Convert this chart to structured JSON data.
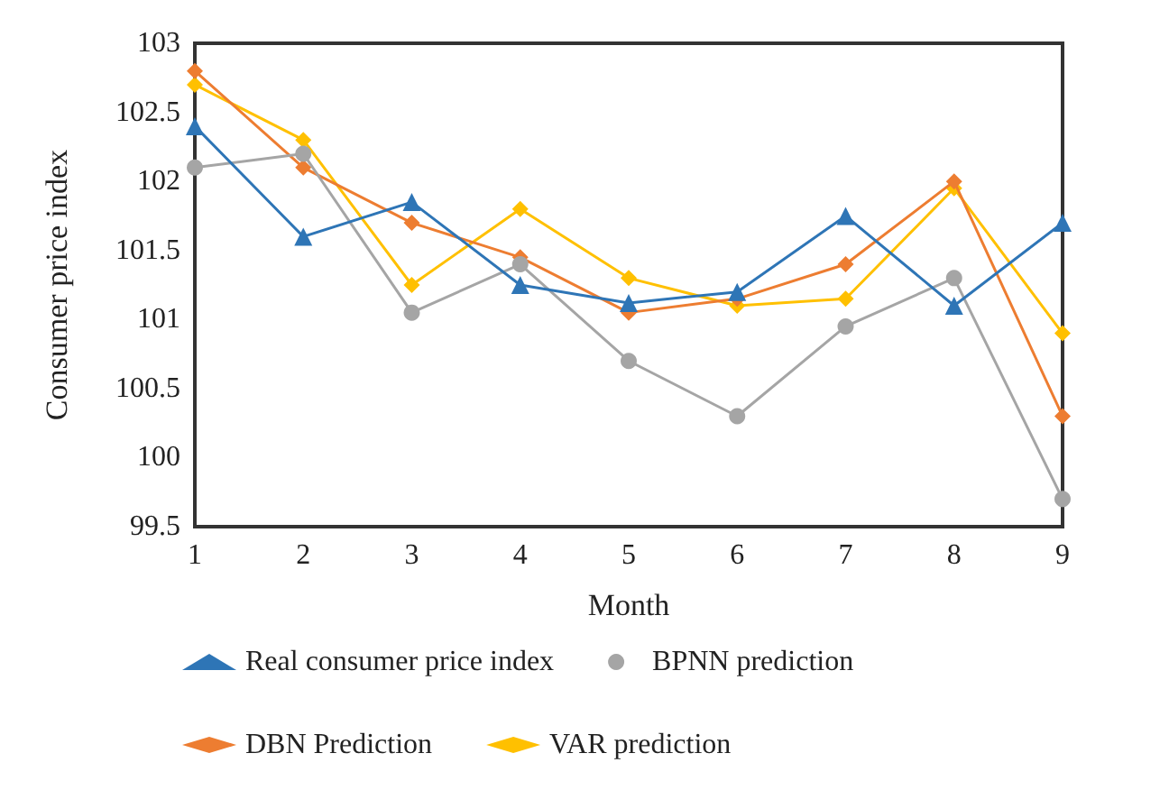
{
  "chart_data": {
    "type": "line",
    "xlabel": "Month",
    "ylabel": "Consumer price index",
    "x": [
      1,
      2,
      3,
      4,
      5,
      6,
      7,
      8,
      9
    ],
    "xlim": [
      1,
      9
    ],
    "xticks": [
      1,
      2,
      3,
      4,
      5,
      6,
      7,
      8,
      9
    ],
    "ylim": [
      99.5,
      103
    ],
    "yticks": [
      99.5,
      100,
      100.5,
      101,
      101.5,
      102,
      102.5,
      103
    ],
    "grid": false,
    "legend": "bottom",
    "series": [
      {
        "name": "Real consumer price index",
        "color": "#2e75b6",
        "marker": "triangle",
        "values": [
          102.4,
          101.6,
          101.85,
          101.25,
          101.12,
          101.2,
          101.75,
          101.1,
          101.7
        ]
      },
      {
        "name": "BPNN prediction",
        "color": "#a5a5a5",
        "marker": "circle",
        "values": [
          102.1,
          102.2,
          101.05,
          101.4,
          100.7,
          100.3,
          100.95,
          101.3,
          99.7
        ]
      },
      {
        "name": "DBN Prediction",
        "color": "#ed7d31",
        "marker": "diamond",
        "values": [
          102.8,
          102.1,
          101.7,
          101.45,
          101.05,
          101.15,
          101.4,
          102.0,
          100.3
        ]
      },
      {
        "name": "VAR prediction",
        "color": "#ffc000",
        "marker": "diamond",
        "values": [
          102.7,
          102.3,
          101.25,
          101.8,
          101.3,
          101.1,
          101.15,
          101.95,
          100.9
        ]
      }
    ]
  }
}
